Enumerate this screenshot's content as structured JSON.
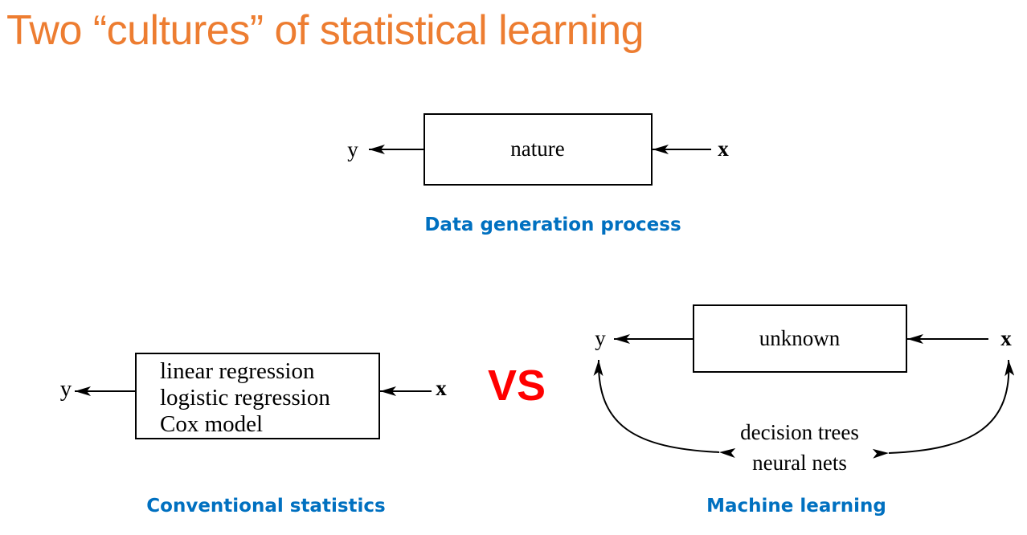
{
  "title": "Two “cultures” of statistical learning",
  "colors": {
    "title": "#ED7D31",
    "caption": "#0070C0",
    "vs": "#FF0000",
    "line": "#000000"
  },
  "top_diagram": {
    "box_label": "nature",
    "output_label": "y",
    "input_label": "x",
    "caption": "Data generation process"
  },
  "left_diagram": {
    "box_lines": [
      "linear regression",
      "logistic regression",
      "Cox model"
    ],
    "output_label": "y",
    "input_label": "x",
    "caption": "Conventional statistics"
  },
  "vs_label": "VS",
  "right_diagram": {
    "box_label": "unknown",
    "output_label": "y",
    "input_label": "x",
    "method_lines": [
      "decision trees",
      "neural nets"
    ],
    "caption": "Machine learning"
  }
}
